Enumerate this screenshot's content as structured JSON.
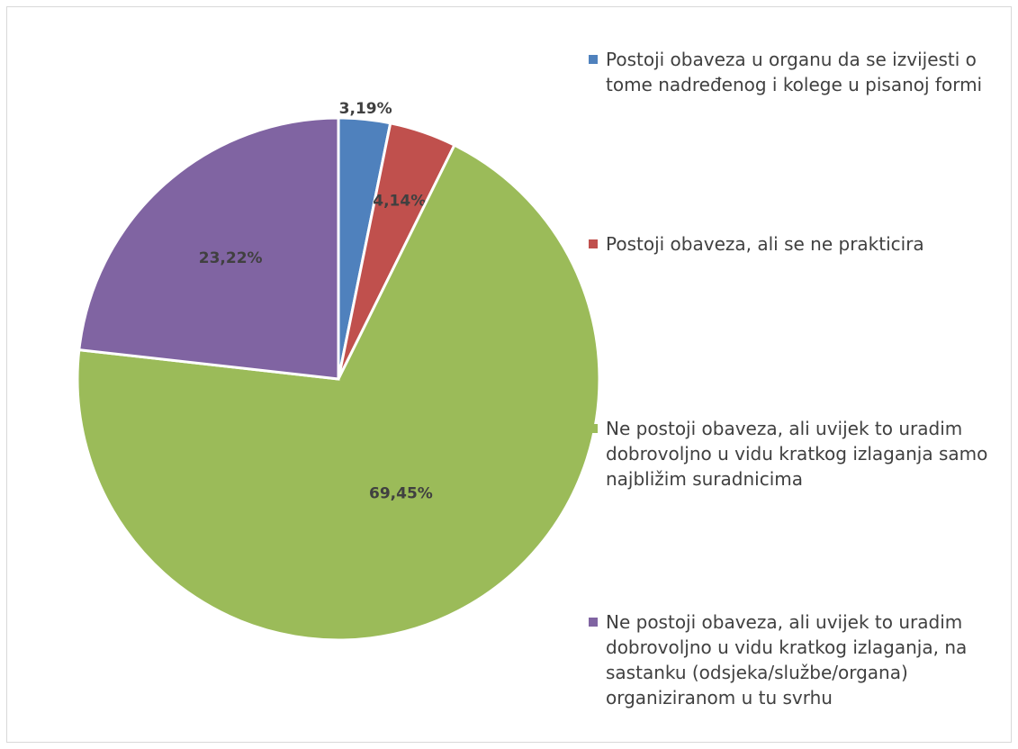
{
  "chart_data": {
    "type": "pie",
    "categories": [
      "Postoji obaveza u organu da se izvijesti o tome nadređenog i kolege u pisanoj formi",
      "Postoji obaveza, ali se ne prakticira",
      "Ne postoji obaveza, ali uvijek to uradim dobrovoljno u vidu kratkog izlaganja samo najbližim suradnicima",
      "Ne postoji obaveza, ali uvijek to uradim dobrovoljno u vidu kratkog izlaganja, na sastanku (odsjeka/službe/organa) organiziranom u tu svrhu"
    ],
    "values": [
      3.19,
      4.14,
      69.45,
      23.22
    ],
    "data_labels": [
      "3,19%",
      "4,14%",
      "69,45%",
      "23,22%"
    ],
    "colors": [
      "#4f81bd",
      "#c0504d",
      "#9bbb59",
      "#8064a2"
    ],
    "legend_position": "right",
    "start_angle_deg": 0,
    "direction": "clockwise"
  }
}
